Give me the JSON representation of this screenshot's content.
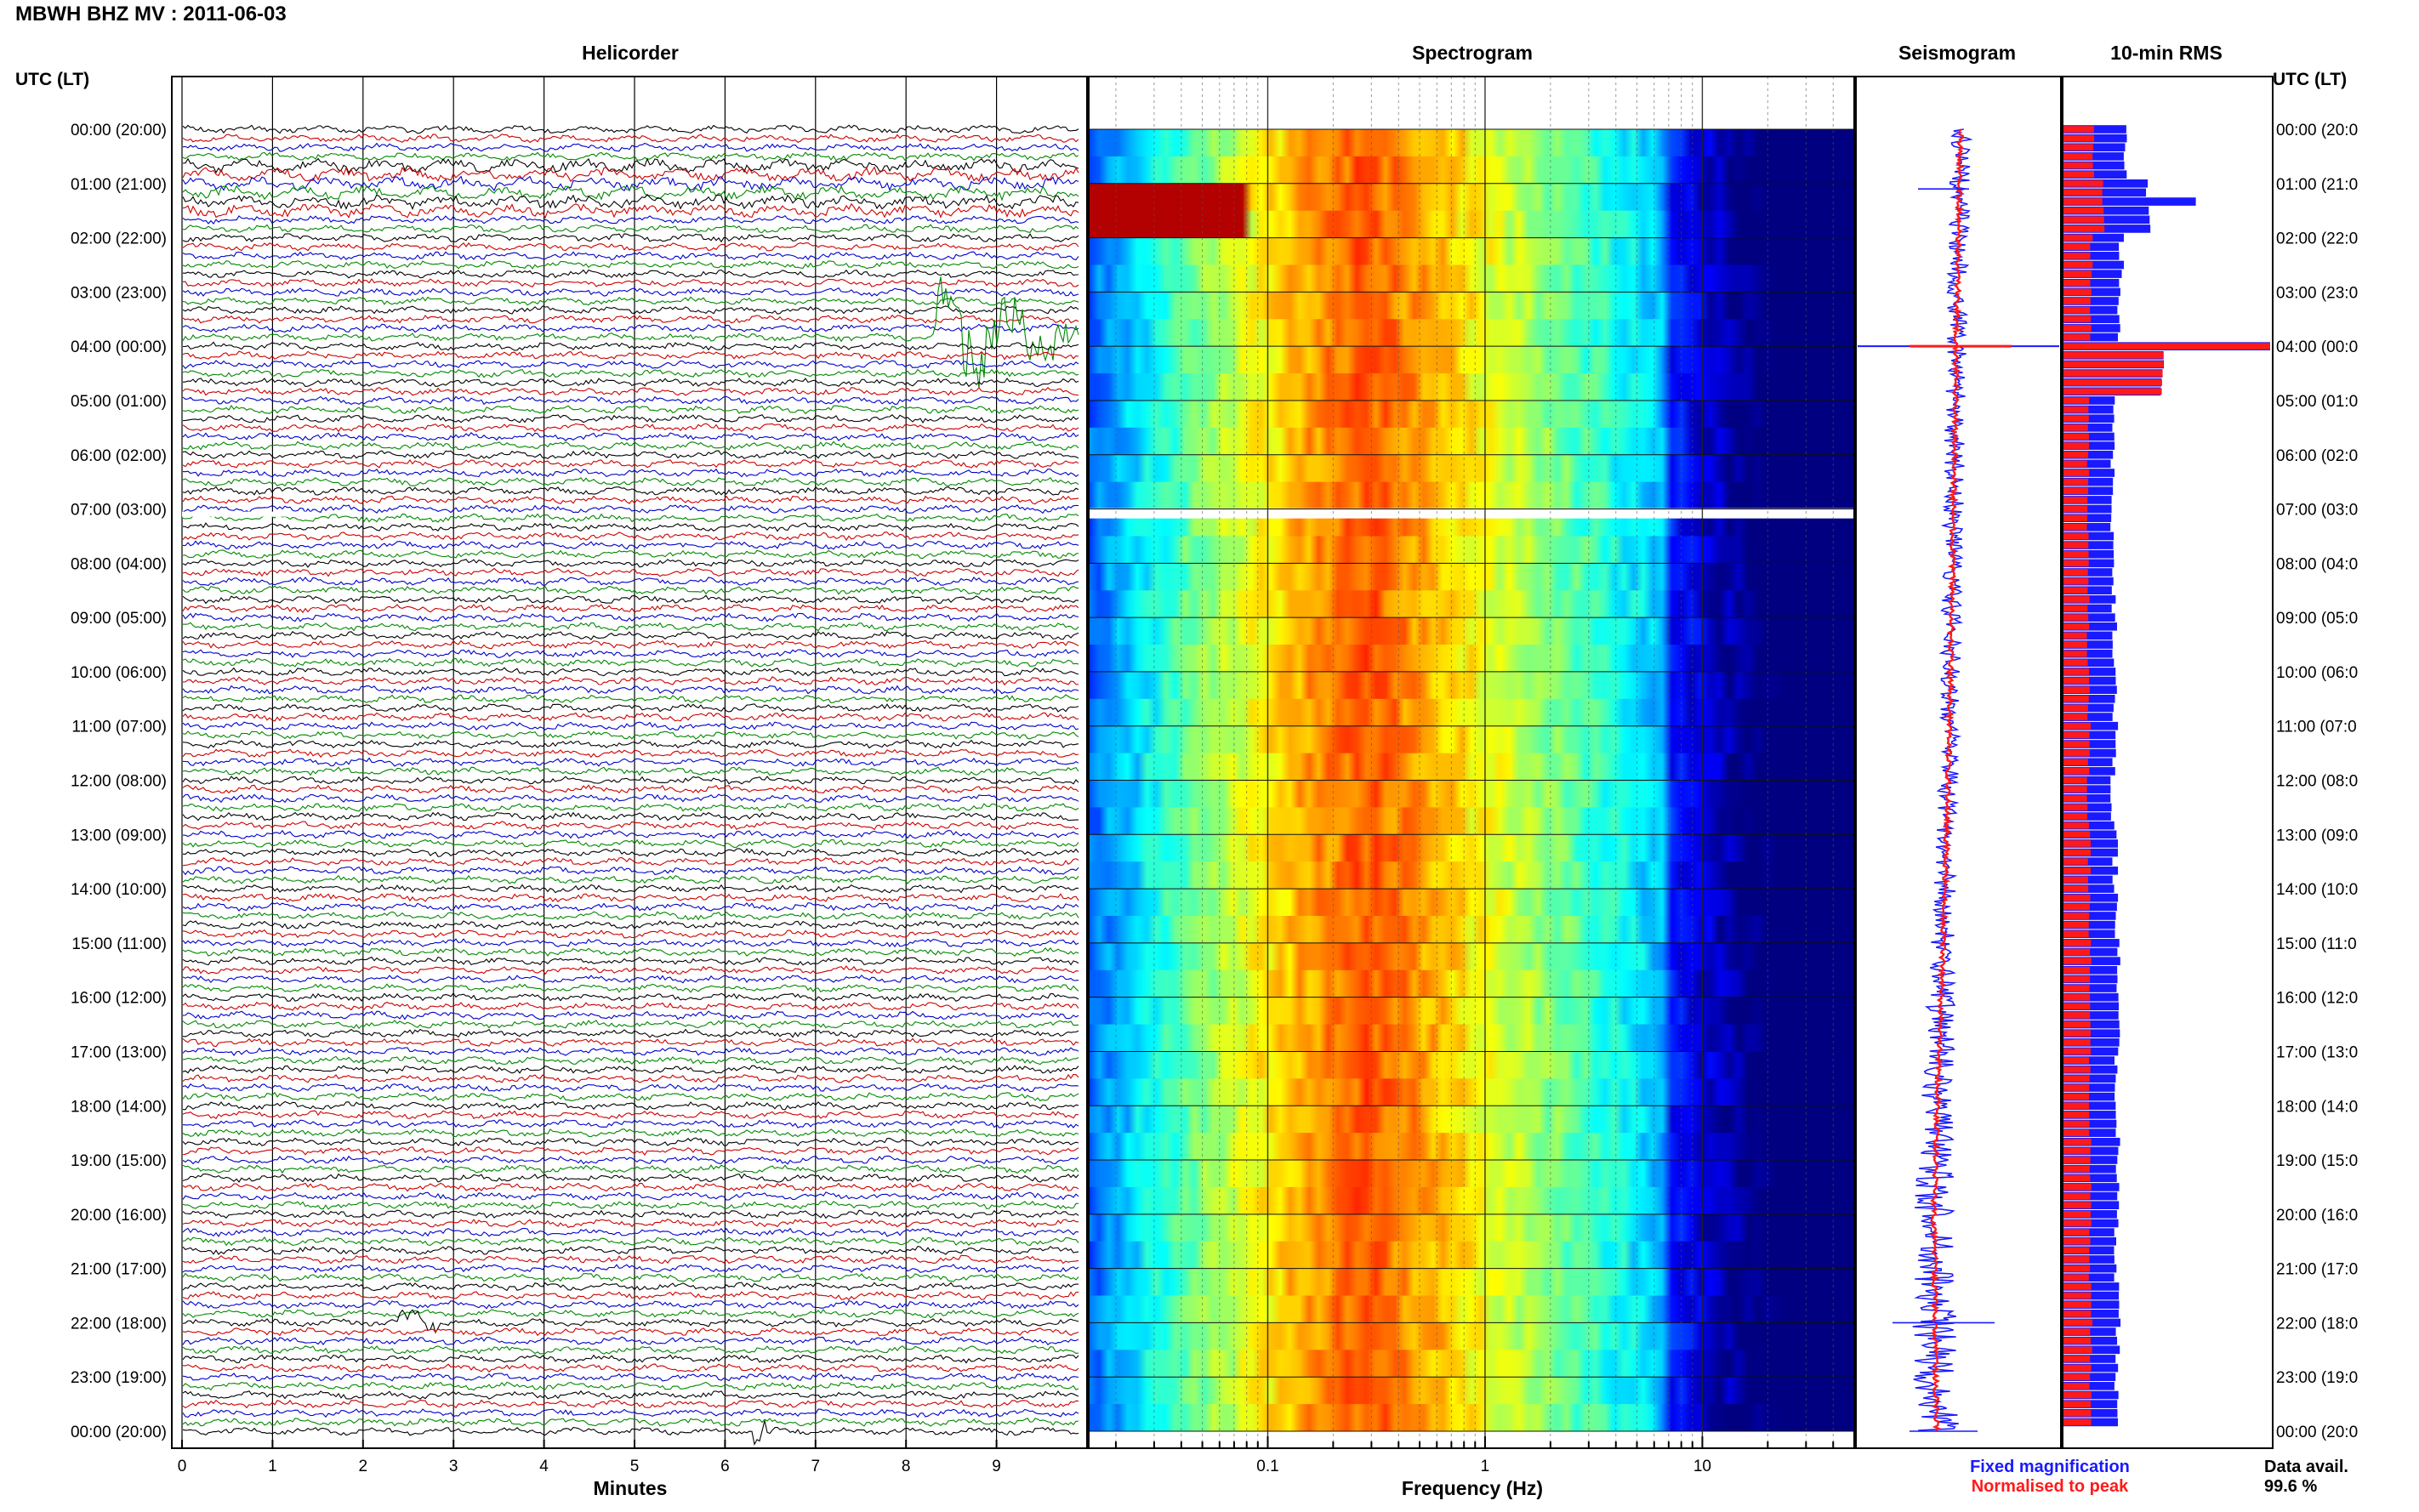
{
  "header": {
    "title": "MBWH BHZ MV : 2011-06-03",
    "left_axis_label": "UTC (LT)",
    "right_axis_label": "UTC (LT)"
  },
  "panels": {
    "helicorder": {
      "title": "Helicorder",
      "xlabel": "Minutes"
    },
    "spectrogram": {
      "title": "Spectrogram",
      "xlabel": "Frequency (Hz)"
    },
    "seismogram": {
      "title": "Seismogram"
    },
    "rms": {
      "title": "10-min RMS"
    }
  },
  "legend": {
    "fixed": {
      "label": "Fixed magnification",
      "color": "#1a1aff"
    },
    "normalised": {
      "label": "Normalised to peak",
      "color": "#ff1a1a"
    }
  },
  "data_avail": {
    "label": "Data avail.",
    "value": "99.6 %"
  },
  "colors": {
    "trace_cycle": [
      "#000000",
      "#cc0000",
      "#0000cc",
      "#008800"
    ],
    "spectrogram_low": "#0a1aa8",
    "spectrogram_high": "#ff4000",
    "rms_fixed": "#1a1aff",
    "rms_normalised": "#ff1a1a"
  },
  "chart_data": [
    {
      "type": "line",
      "panel": "helicorder",
      "title": "Helicorder",
      "xlabel": "Minutes",
      "x_ticks": [
        "0",
        "1",
        "2",
        "3",
        "4",
        "5",
        "6",
        "7",
        "8",
        "9"
      ],
      "xlim": [
        0,
        10
      ],
      "left_time_labels": [
        "00:00 (20:00)",
        "01:00 (21:00)",
        "02:00 (22:00)",
        "03:00 (23:00)",
        "04:00 (00:00)",
        "05:00 (01:00)",
        "06:00 (02:00)",
        "07:00 (03:00)",
        "08:00 (04:00)",
        "09:00 (05:00)",
        "10:00 (06:00)",
        "11:00 (07:00)",
        "12:00 (08:00)",
        "13:00 (09:00)",
        "14:00 (10:00)",
        "15:00 (11:00)",
        "16:00 (12:00)",
        "17:00 (13:00)",
        "18:00 (14:00)",
        "19:00 (15:00)",
        "20:00 (16:00)",
        "21:00 (17:00)",
        "22:00 (18:00)",
        "23:00 (19:00)",
        "00:00 (20:00)"
      ],
      "lines_per_hour": 6,
      "events": [
        {
          "hour": 3.9,
          "minute_start": 8.3,
          "minute_end": 10,
          "amplitude": 2.6
        },
        {
          "hour": 22.0,
          "minute_start": 2.4,
          "minute_end": 2.9,
          "amplitude": 0.9
        },
        {
          "hour": 24.0,
          "minute_start": 6.3,
          "minute_end": 6.5,
          "amplitude": 1.2
        }
      ],
      "gap": {
        "hour": 7.08
      }
    },
    {
      "type": "heatmap",
      "panel": "spectrogram",
      "title": "Spectrogram",
      "xlabel": "Frequency (Hz)",
      "x_scale": "log",
      "xlim": [
        0.015,
        50
      ],
      "x_ticks": [
        "0.1",
        "1",
        "10"
      ],
      "peak_band_hz": [
        0.2,
        0.35
      ],
      "gap": {
        "hour": 7.08
      }
    },
    {
      "type": "line",
      "panel": "seismogram",
      "title": "Seismogram",
      "series": [
        {
          "name": "Fixed magnification",
          "color": "#1a1aff"
        },
        {
          "name": "Normalised to peak",
          "color": "#ff1a1a"
        }
      ]
    },
    {
      "type": "bar",
      "panel": "rms",
      "title": "10-min RMS",
      "right_time_labels": [
        "00:00 (20:0",
        "01:00 (21:0",
        "02:00 (22:0",
        "03:00 (23:0",
        "04:00 (00:0",
        "05:00 (01:0",
        "06:00 (02:0",
        "07:00 (03:0",
        "08:00 (04:0",
        "09:00 (05:0",
        "10:00 (06:0",
        "11:00 (07:0",
        "12:00 (08:0",
        "13:00 (09:0",
        "14:00 (10:0",
        "15:00 (11:0",
        "16:00 (12:0",
        "17:00 (13:0",
        "18:00 (14:0",
        "19:00 (15:0",
        "20:00 (16:0",
        "21:00 (17:0",
        "22:00 (18:0",
        "23:00 (19:0",
        "00:00 (20:0"
      ],
      "hourly_rms": [
        {
          "hour": 0,
          "fixed": 0.62,
          "normalised": 0.3
        },
        {
          "hour": 1,
          "fixed": 0.85,
          "normalised": 0.4
        },
        {
          "hour": 2,
          "fixed": 0.58,
          "normalised": 0.28
        },
        {
          "hour": 3,
          "fixed": 0.55,
          "normalised": 0.27
        },
        {
          "hour": 4,
          "fixed": 1.0,
          "normalised": 1.0
        },
        {
          "hour": 5,
          "fixed": 0.52,
          "normalised": 0.26
        },
        {
          "hour": 6,
          "fixed": 0.5,
          "normalised": 0.25
        },
        {
          "hour": 7,
          "fixed": 0.48,
          "normalised": 0.24
        },
        {
          "hour": 8,
          "fixed": 0.5,
          "normalised": 0.25
        },
        {
          "hour": 9,
          "fixed": 0.52,
          "normalised": 0.25
        },
        {
          "hour": 10,
          "fixed": 0.51,
          "normalised": 0.25
        },
        {
          "hour": 11,
          "fixed": 0.52,
          "normalised": 0.26
        },
        {
          "hour": 12,
          "fixed": 0.5,
          "normalised": 0.25
        },
        {
          "hour": 13,
          "fixed": 0.52,
          "normalised": 0.26
        },
        {
          "hour": 14,
          "fixed": 0.53,
          "normalised": 0.26
        },
        {
          "hour": 15,
          "fixed": 0.55,
          "normalised": 0.27
        },
        {
          "hour": 16,
          "fixed": 0.56,
          "normalised": 0.27
        },
        {
          "hour": 17,
          "fixed": 0.54,
          "normalised": 0.27
        },
        {
          "hour": 18,
          "fixed": 0.55,
          "normalised": 0.27
        },
        {
          "hour": 19,
          "fixed": 0.54,
          "normalised": 0.27
        },
        {
          "hour": 20,
          "fixed": 0.53,
          "normalised": 0.27
        },
        {
          "hour": 21,
          "fixed": 0.54,
          "normalised": 0.27
        },
        {
          "hour": 22,
          "fixed": 0.55,
          "normalised": 0.28
        },
        {
          "hour": 23,
          "fixed": 0.53,
          "normalised": 0.27
        }
      ]
    }
  ]
}
